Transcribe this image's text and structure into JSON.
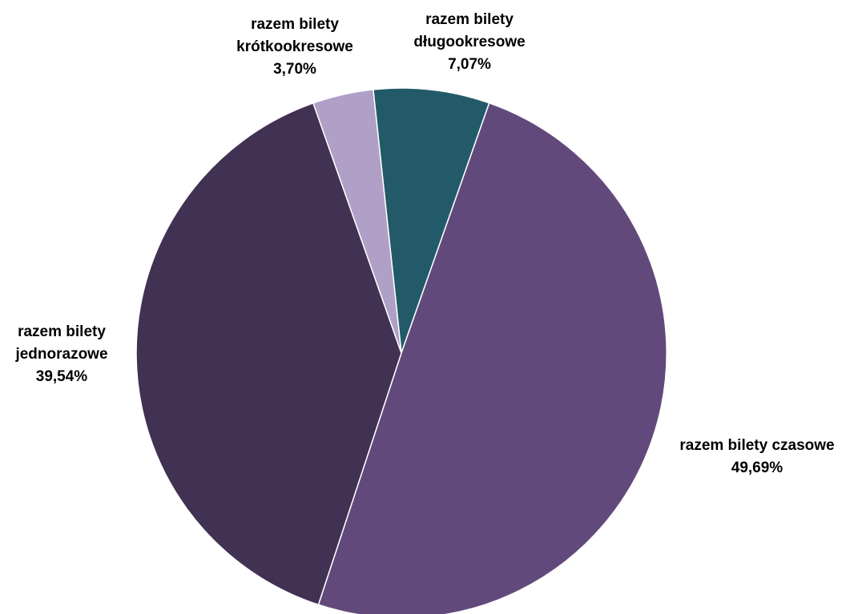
{
  "chart_data": {
    "type": "pie",
    "title": "",
    "slices": [
      {
        "label_lines": [
          "razem bilety",
          "długookresowe"
        ],
        "value_label": "7,07%",
        "value": 7.07,
        "color": "#235A69"
      },
      {
        "label_lines": [
          "razem bilety czasowe"
        ],
        "value_label": "49,69%",
        "value": 49.69,
        "color": "#614A7B"
      },
      {
        "label_lines": [
          "razem bilety",
          "jednorazowe"
        ],
        "value_label": "39,54%",
        "value": 39.54,
        "color": "#413152"
      },
      {
        "label_lines": [
          "razem bilety",
          "krótkookresowe"
        ],
        "value_label": "3,70%",
        "value": 3.7,
        "color": "#B09FC6"
      }
    ],
    "legend": "none",
    "data_labels": "outside"
  }
}
